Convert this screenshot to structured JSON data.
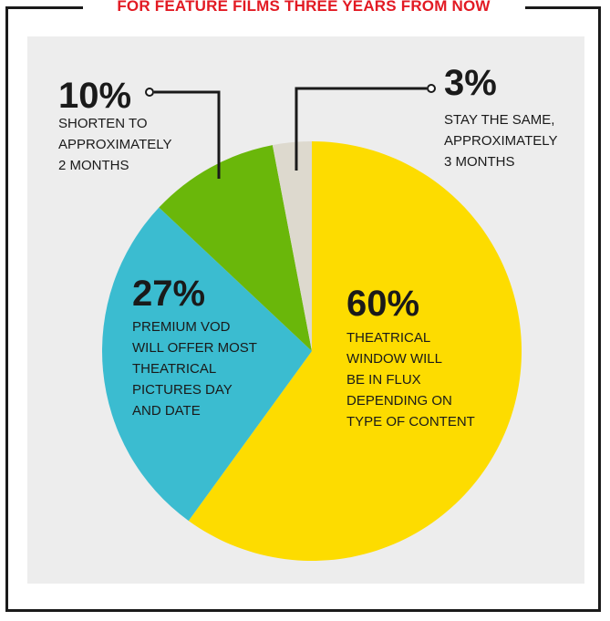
{
  "chart_data": {
    "type": "pie",
    "title": "FOR FEATURE FILMS THREE YEARS FROM NOW",
    "slices": [
      {
        "percent_label": "60%",
        "value": 60,
        "color": "#fddc00",
        "description": [
          "THEATRICAL",
          "WINDOW WILL",
          "BE IN FLUX",
          "DEPENDING ON",
          "TYPE OF CONTENT"
        ]
      },
      {
        "percent_label": "27%",
        "value": 27,
        "color": "#3bbcd0",
        "description": [
          "PREMIUM VOD",
          "WILL OFFER MOST",
          "THEATRICAL",
          "PICTURES DAY",
          "AND DATE"
        ]
      },
      {
        "percent_label": "10%",
        "value": 10,
        "color": "#6ab70a",
        "description": [
          "SHORTEN TO",
          "APPROXIMATELY",
          "2 MONTHS"
        ]
      },
      {
        "percent_label": "3%",
        "value": 3,
        "color": "#ddd9ce",
        "description": [
          "STAY THE SAME,",
          "APPROXIMATELY",
          "3 MONTHS"
        ]
      }
    ]
  }
}
